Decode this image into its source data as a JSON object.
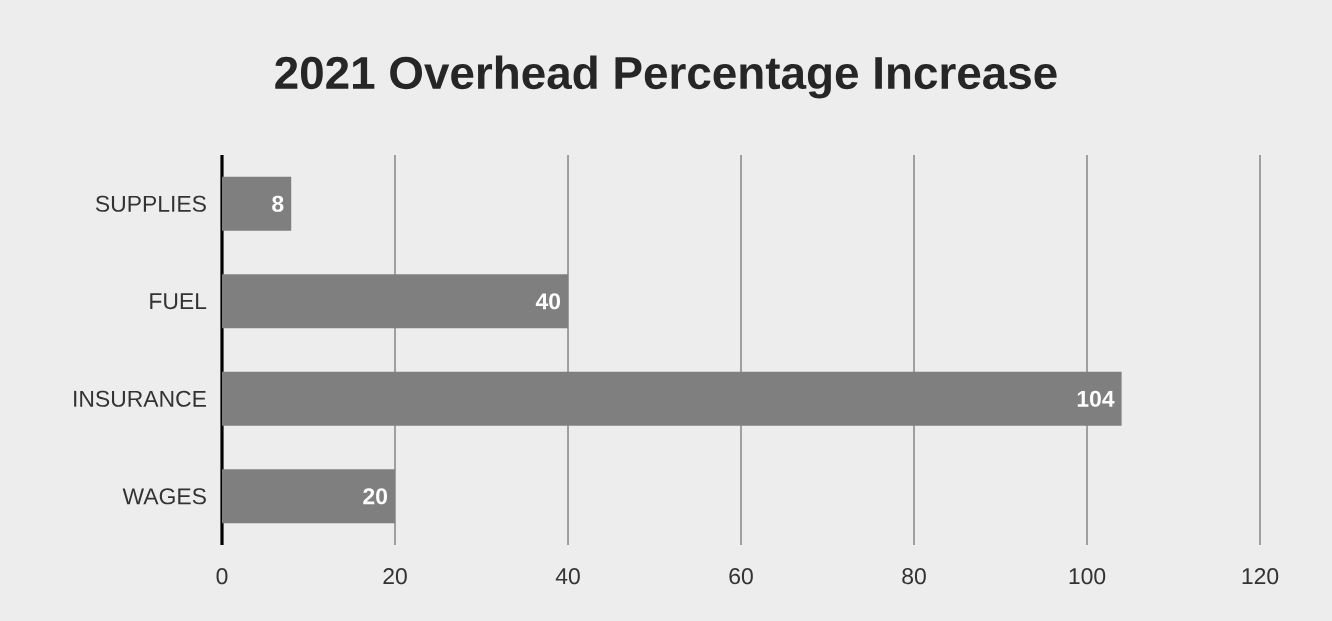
{
  "chart_data": {
    "type": "bar",
    "orientation": "horizontal",
    "title": "2021 Overhead Percentage Increase",
    "categories": [
      "SUPPLIES",
      "FUEL",
      "INSURANCE",
      "WAGES"
    ],
    "values": [
      8,
      40,
      104,
      20
    ],
    "color": "#7f7f7f",
    "xlim": [
      0,
      120
    ],
    "xticks": [
      0,
      20,
      40,
      60,
      80,
      100,
      120
    ],
    "grid": "x",
    "data_labels": true
  }
}
